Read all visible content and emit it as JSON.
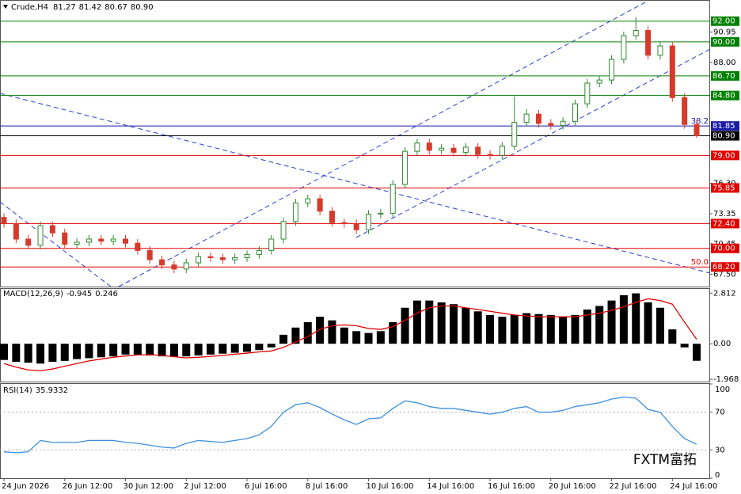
{
  "chart_data": [
    {
      "type": "candlestick",
      "title": "Crude,H4",
      "quote": [
        81.27,
        81.42,
        80.67,
        {
          "value": 80.9,
          "label": "80.90"
        }
      ],
      "up_color": "#2f8a2f",
      "down_color": "#d63a2a",
      "categories": [
        "24 Jun 2026",
        null,
        null,
        null,
        null,
        "26 Jun 12:00",
        null,
        null,
        null,
        null,
        "30 Jun 12:00",
        null,
        null,
        null,
        null,
        "2 Jul 12:00",
        null,
        null,
        null,
        null,
        "6 Jul 16:00",
        null,
        null,
        null,
        null,
        "8 Jul 16:00",
        null,
        null,
        null,
        null,
        "10 Jul 16:00",
        null,
        null,
        null,
        null,
        "14 Jul 16:00",
        null,
        null,
        null,
        null,
        "16 Jul 16:00",
        null,
        null,
        null,
        null,
        "20 Jul 16:00",
        null,
        null,
        null,
        null,
        "22 Jul 16:00",
        null,
        null,
        null,
        null,
        "24 Jul 16:00",
        null,
        null
      ],
      "open": [
        73.0,
        72.4,
        70.9,
        70.3,
        72.2,
        71.5,
        70.4,
        70.6,
        70.9,
        70.7,
        70.9,
        70.5,
        69.8,
        68.9,
        68.4,
        68.0,
        68.6,
        69.2,
        69.1,
        68.9,
        69.1,
        69.4,
        69.8,
        70.9,
        72.6,
        74.4,
        74.8,
        73.6,
        72.5,
        72.4,
        71.8,
        73.3,
        73.4,
        76.2,
        79.4,
        80.2,
        79.5,
        79.7,
        79.3,
        79.8,
        79.1,
        79.0,
        79.9,
        82.2,
        83.0,
        82.1,
        81.9,
        82.3,
        84.0,
        86.0,
        86.3,
        88.3,
        90.6,
        91.1,
        88.7,
        89.6,
        84.6,
        82.0
      ],
      "high": [
        73.4,
        72.8,
        71.3,
        72.6,
        72.6,
        71.9,
        71.0,
        71.3,
        71.3,
        71.3,
        71.3,
        70.9,
        70.2,
        69.3,
        68.8,
        69.0,
        69.6,
        69.6,
        69.5,
        69.5,
        69.8,
        70.2,
        71.3,
        73.0,
        74.8,
        75.2,
        75.2,
        74.0,
        72.9,
        72.8,
        73.7,
        73.8,
        76.6,
        79.8,
        80.6,
        80.6,
        80.1,
        80.1,
        80.2,
        80.2,
        79.5,
        80.3,
        84.7,
        83.5,
        83.4,
        82.5,
        82.7,
        84.4,
        86.4,
        86.7,
        88.7,
        91.0,
        92.4,
        91.5,
        90.0,
        90.0,
        85.0,
        82.4
      ],
      "low": [
        72.0,
        70.5,
        69.9,
        69.9,
        71.1,
        70.0,
        70.0,
        70.2,
        70.3,
        70.3,
        70.1,
        69.4,
        68.5,
        68.0,
        67.6,
        67.6,
        68.2,
        68.7,
        68.5,
        68.5,
        68.7,
        69.0,
        69.4,
        70.5,
        72.2,
        74.0,
        73.2,
        72.1,
        72.0,
        71.4,
        71.4,
        72.9,
        73.0,
        75.8,
        79.0,
        79.1,
        79.1,
        78.9,
        78.9,
        78.7,
        78.6,
        78.6,
        79.5,
        81.8,
        81.7,
        81.5,
        81.5,
        81.9,
        83.6,
        85.6,
        85.9,
        87.9,
        90.2,
        88.3,
        88.3,
        84.2,
        81.6,
        80.7
      ],
      "close": [
        72.4,
        70.9,
        70.3,
        72.2,
        71.5,
        70.4,
        70.6,
        70.9,
        70.7,
        70.9,
        70.5,
        69.8,
        68.9,
        68.4,
        68.0,
        68.6,
        69.2,
        69.1,
        68.9,
        69.1,
        69.4,
        69.8,
        70.9,
        72.6,
        74.4,
        74.8,
        73.6,
        72.5,
        72.4,
        71.8,
        73.3,
        73.4,
        76.2,
        79.4,
        80.2,
        79.5,
        79.7,
        79.3,
        79.8,
        79.1,
        79.0,
        79.9,
        82.2,
        83.0,
        82.1,
        81.9,
        82.3,
        84.0,
        86.0,
        86.3,
        88.3,
        90.6,
        91.1,
        88.7,
        89.6,
        84.6,
        82.0,
        80.9
      ],
      "ylim": [
        66.3,
        94.05
      ],
      "yticks": [
        90.95,
        {
          "value": 88,
          "label": "88.00"
        },
        {
          "value": 76.3,
          "label": "76.30"
        },
        73.35,
        70.45,
        {
          "value": 67.5,
          "label": "67.50"
        }
      ],
      "levels": [
        {
          "value": 92,
          "label": "92.00",
          "color": "#008000"
        },
        {
          "value": 90,
          "label": "90.00",
          "color": "#008000"
        },
        {
          "value": 86.7,
          "label": "86.70",
          "color": "#008000"
        },
        {
          "value": 84.8,
          "label": "84.80",
          "color": "#008000"
        },
        {
          "value": 81.85,
          "label": "81.85",
          "color": "#1a1aa6",
          "fib": 38.2
        },
        {
          "value": 80.9,
          "label": "80.90",
          "color": "#000000"
        },
        {
          "value": 79,
          "label": "79.00",
          "color": "#e00000"
        },
        {
          "value": 75.85,
          "label": "75.85",
          "color": "#e00000"
        },
        {
          "value": 72.4,
          "label": "72.40",
          "color": "#e00000"
        },
        {
          "value": 70,
          "label": "70.00",
          "color": "#e00000"
        },
        {
          "value": 68.2,
          "label": "68.20",
          "color": "#e00000",
          "fib": {
            "value": 50,
            "label": "50.0"
          }
        }
      ],
      "watermark": "FXTM富拓"
    },
    {
      "type": "macd",
      "title": "MACD(12,26,9)",
      "readout": [
        -0.945,
        0.246
      ],
      "histogram": [
        -0.9,
        -1.0,
        -1.05,
        -1.1,
        -1.0,
        -0.95,
        -0.85,
        -0.8,
        -0.75,
        -0.7,
        -0.6,
        -0.6,
        -0.65,
        -0.7,
        -0.72,
        -0.7,
        -0.65,
        -0.6,
        -0.55,
        -0.5,
        -0.45,
        -0.35,
        -0.2,
        0.5,
        0.9,
        1.2,
        1.5,
        1.3,
        0.9,
        0.7,
        0.6,
        0.7,
        1.2,
        2.0,
        2.4,
        2.4,
        2.3,
        2.2,
        2.0,
        1.8,
        1.6,
        1.5,
        1.6,
        1.7,
        1.65,
        1.6,
        1.5,
        1.6,
        1.9,
        2.1,
        2.4,
        2.7,
        2.8,
        2.3,
        2.0,
        0.8,
        -0.2,
        -0.945
      ],
      "signal": [
        -1.1,
        -1.3,
        -1.45,
        -1.5,
        -1.4,
        -1.25,
        -1.1,
        -0.95,
        -0.85,
        -0.75,
        -0.68,
        -0.62,
        -0.6,
        -0.65,
        -0.72,
        -0.78,
        -0.75,
        -0.7,
        -0.65,
        -0.58,
        -0.52,
        -0.45,
        -0.4,
        -0.2,
        0.1,
        0.4,
        0.8,
        1.0,
        1.05,
        1.0,
        0.85,
        0.8,
        0.95,
        1.3,
        1.7,
        2.0,
        2.1,
        2.1,
        2.0,
        1.9,
        1.8,
        1.7,
        1.6,
        1.55,
        1.5,
        1.5,
        1.5,
        1.5,
        1.6,
        1.7,
        1.85,
        2.05,
        2.3,
        2.5,
        2.4,
        2.2,
        1.2,
        0.246
      ],
      "ylim": [
        -2.1,
        3.0
      ],
      "yticks": [
        2.812,
        {
          "value": 0,
          "label": "0.00"
        },
        -1.968
      ],
      "hist_color": "#000000",
      "signal_color": "#e00000"
    },
    {
      "type": "line",
      "title": "RSI(14)",
      "readout": 35.9332,
      "values": [
        28,
        27,
        28,
        40,
        38,
        38,
        38,
        40,
        40,
        40,
        38,
        37,
        35,
        33,
        32,
        37,
        40,
        39,
        38,
        40,
        42,
        46,
        55,
        70,
        78,
        80,
        75,
        68,
        62,
        57,
        63,
        64,
        74,
        82,
        80,
        76,
        74,
        74,
        72,
        70,
        68,
        70,
        74,
        76,
        70,
        70,
        72,
        76,
        78,
        80,
        84,
        86,
        85,
        73,
        70,
        55,
        42,
        36
      ],
      "ylim": [
        0,
        100
      ],
      "yticks": [
        100,
        70,
        30,
        0
      ],
      "color": "#3d8fdc"
    }
  ]
}
